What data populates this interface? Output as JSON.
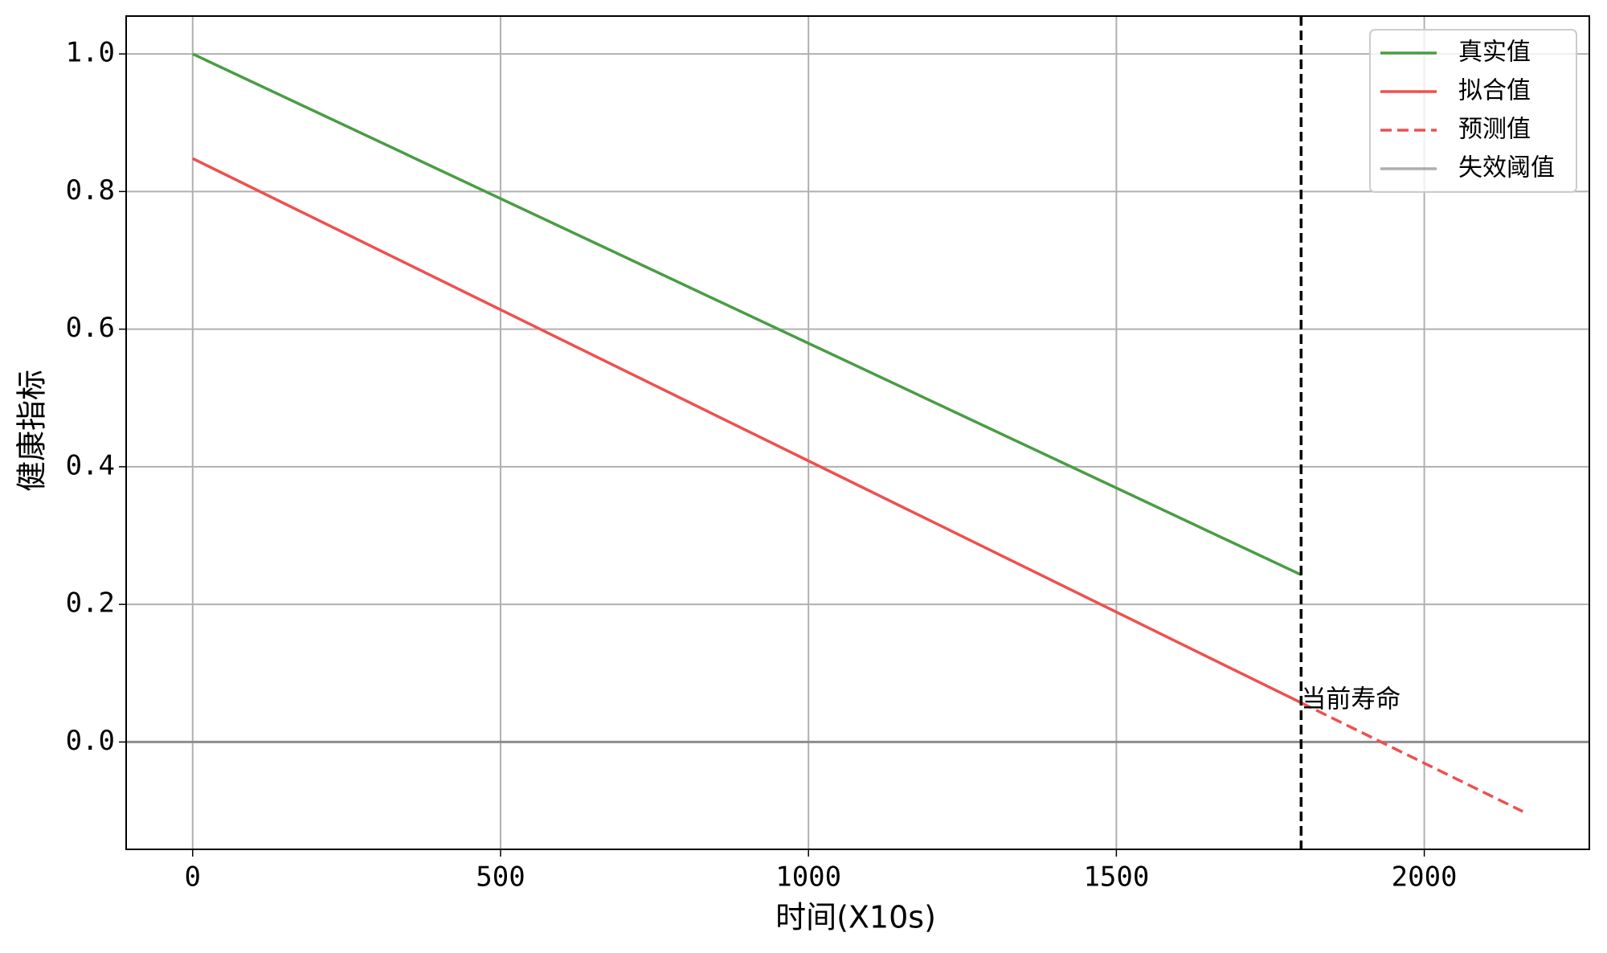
{
  "chart_data": {
    "type": "line",
    "xlabel": "时间(X10s)",
    "ylabel": "健康指标",
    "xlim": [
      -108,
      2268
    ],
    "ylim": [
      -0.156,
      1.055
    ],
    "xticks": [
      0,
      500,
      1000,
      1500,
      2000
    ],
    "yticks": [
      {
        "value": 0,
        "label": "0.0"
      },
      0.2,
      0.4,
      0.6,
      0.8,
      {
        "value": 1,
        "label": "1.0"
      }
    ],
    "grid": true,
    "legend": "upper right",
    "series": [
      {
        "name": "真实值",
        "color": "#4a9c45",
        "dash": false,
        "x": [
          0,
          1800
        ],
        "values": [
          1.0,
          0.243
        ]
      },
      {
        "name": "拟合值",
        "color": "#ee5050",
        "dash": false,
        "x": [
          0,
          1800
        ],
        "values": [
          0.848,
          0.057
        ]
      },
      {
        "name": "预测值",
        "color": "#ee5050",
        "dash": true,
        "x": [
          1800,
          2160
        ],
        "values": [
          0.057,
          -0.101
        ]
      }
    ],
    "hlines": [
      {
        "name": "失效阈值",
        "color": "#8c8c8c",
        "y": 0
      }
    ],
    "vlines": [
      {
        "x": 1800,
        "color": "#000000",
        "dash": true
      }
    ],
    "annotations": [
      {
        "text": "当前寿命",
        "x": 1800,
        "y": 0.06
      }
    ]
  }
}
